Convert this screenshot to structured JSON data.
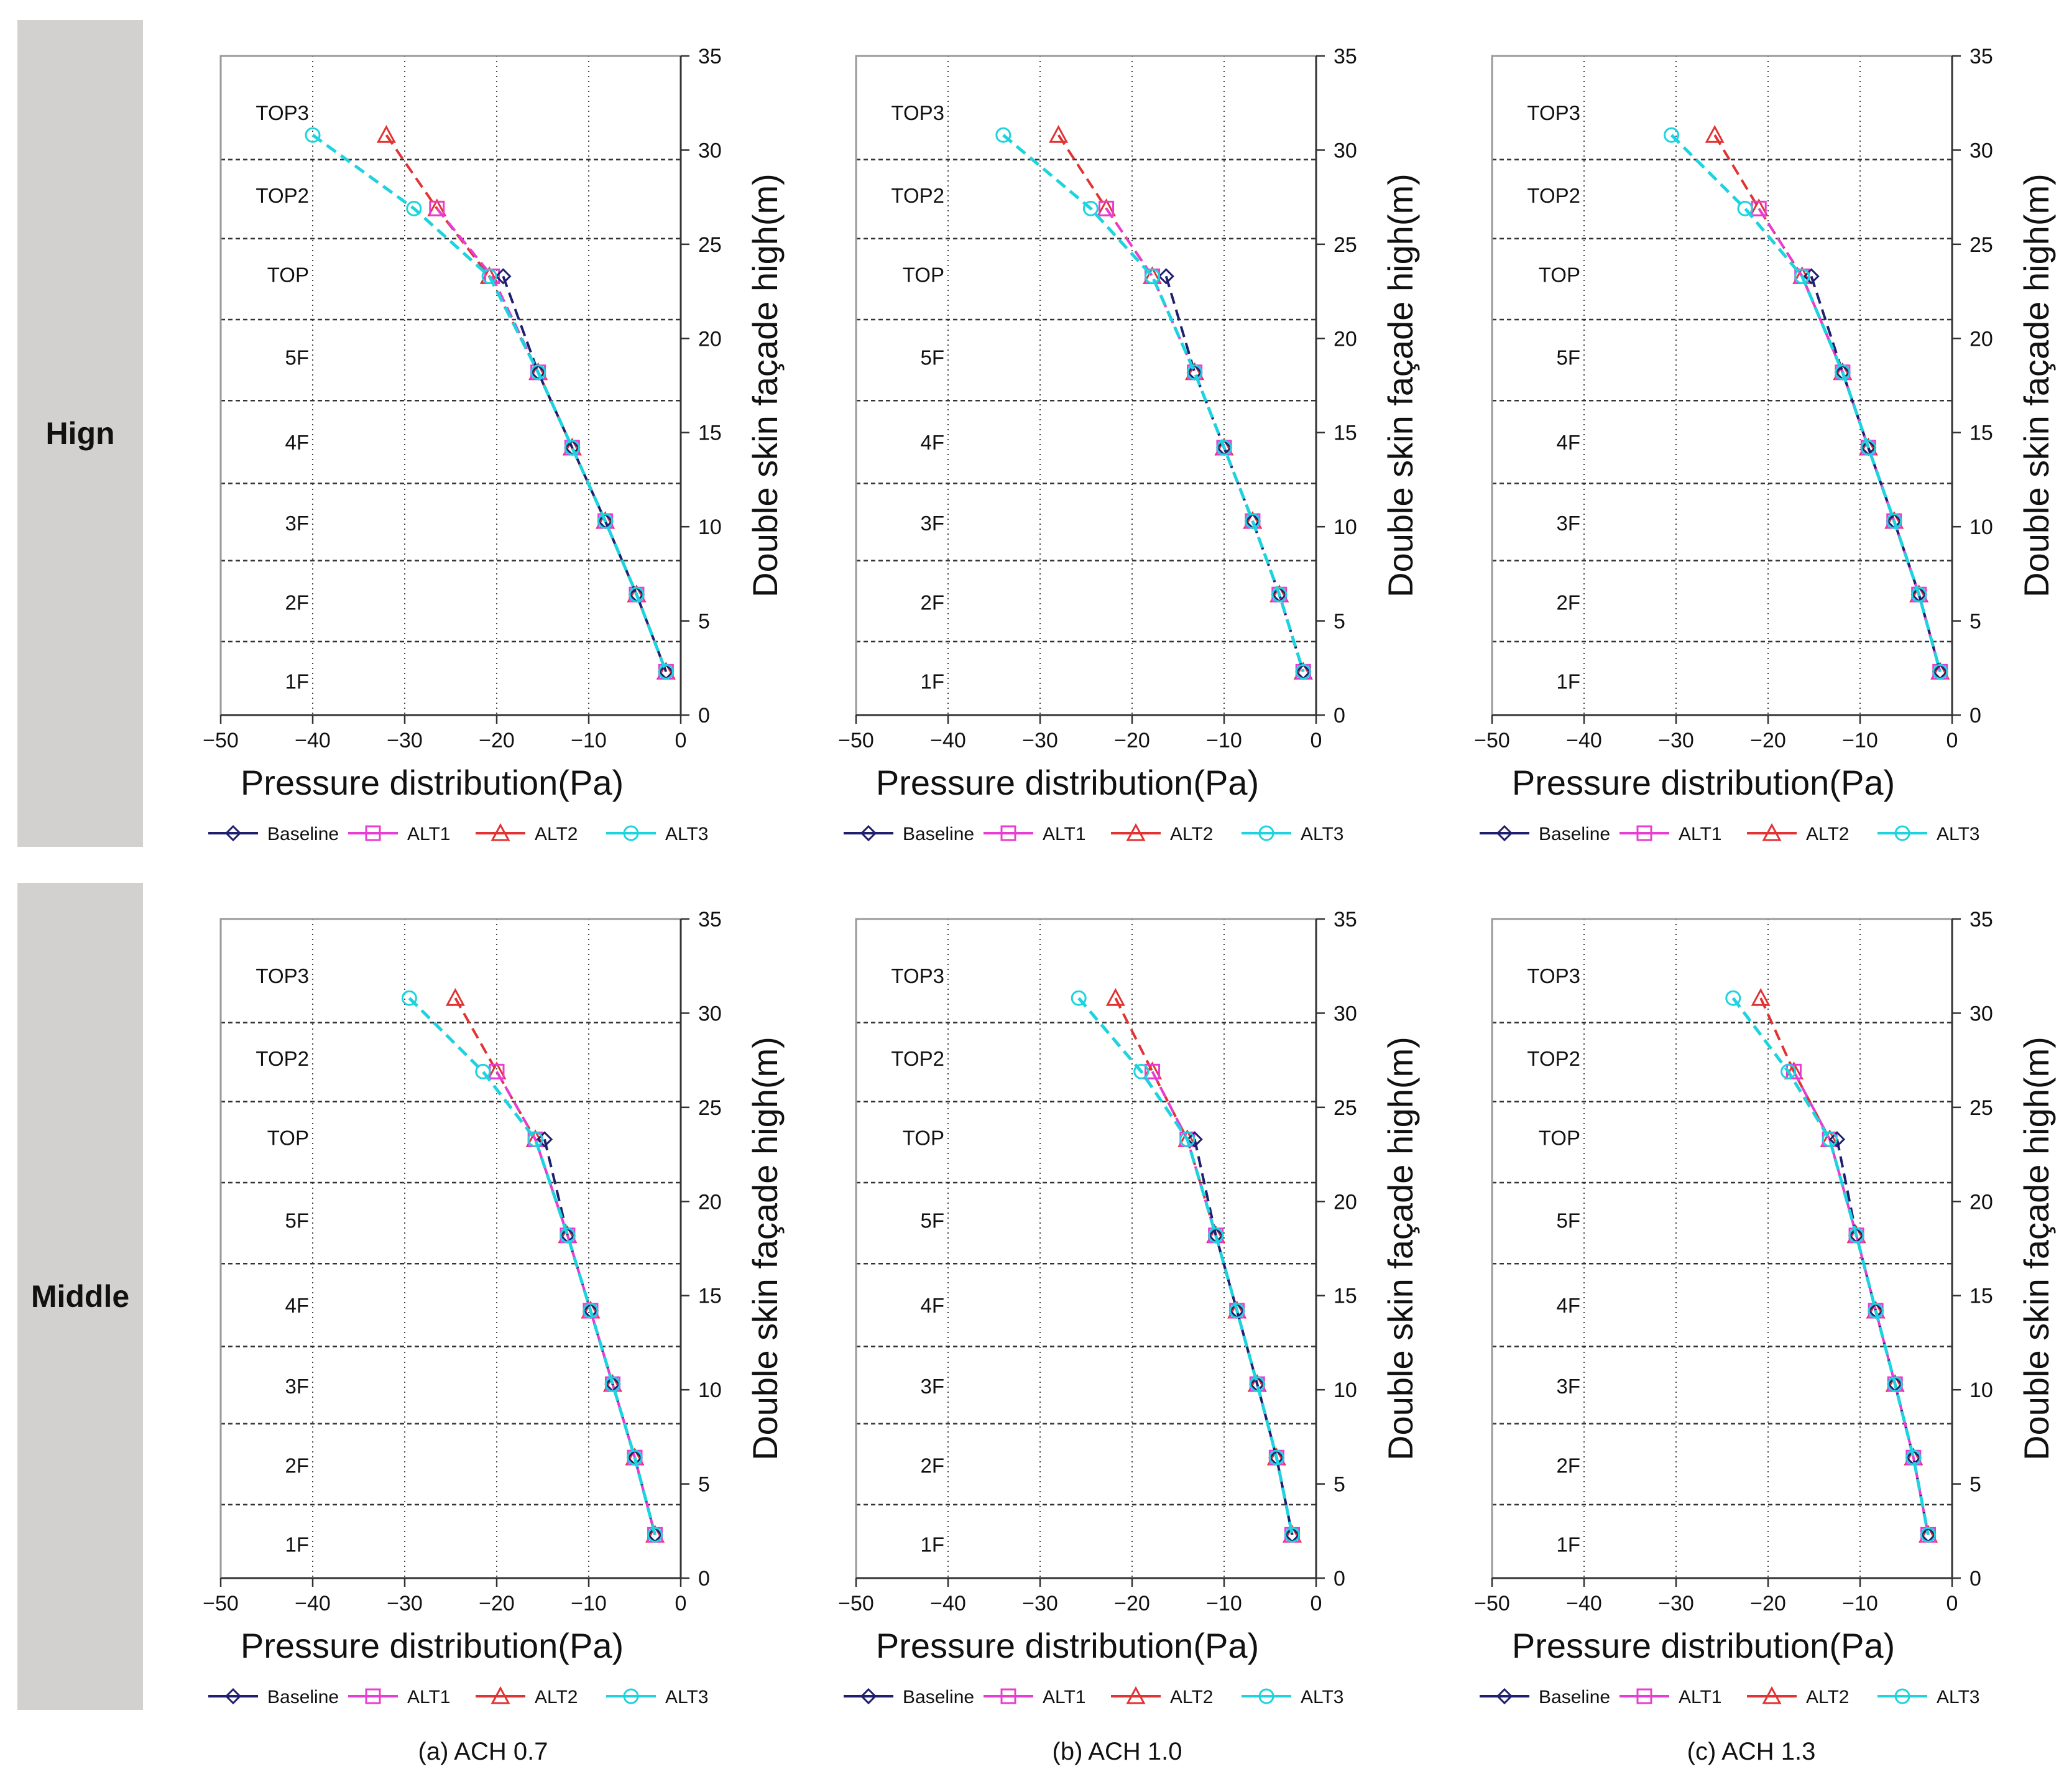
{
  "row_labels": [
    "Hign",
    "Middle"
  ],
  "column_captions": [
    "(a) ACH 0.7",
    "(b) ACH 1.0",
    "(c) ACH 1.3"
  ],
  "colors": {
    "Baseline": "#1f1f6e",
    "ALT1": "#e83cd2",
    "ALT2": "#e23232",
    "ALT3": "#1dd3de",
    "floor_lines": "#333333",
    "grid": "#444444",
    "frame": "#999999",
    "row_label_bg": "#d3d0d0"
  },
  "chart_data": [
    {
      "type": "line",
      "row": "Hign",
      "column": "(a) ACH 0.7",
      "xlabel": "Pressure distribution(Pa)",
      "ylabel": "Double skin façade high(m)",
      "xlim": [
        -50,
        0
      ],
      "ylim": [
        0,
        35
      ],
      "x_ticks": [
        -50,
        -40,
        -30,
        -20,
        -10,
        0
      ],
      "y_ticks": [
        0,
        5,
        10,
        15,
        20,
        25,
        30,
        35
      ],
      "floor_boundaries": [
        3.9,
        8.2,
        12.3,
        16.7,
        21.0,
        25.3,
        29.5
      ],
      "floor_labels": [
        {
          "label": "1F",
          "y": 1.8
        },
        {
          "label": "2F",
          "y": 6.0
        },
        {
          "label": "3F",
          "y": 10.2
        },
        {
          "label": "4F",
          "y": 14.5
        },
        {
          "label": "5F",
          "y": 19.0
        },
        {
          "label": "TOP",
          "y": 23.4
        },
        {
          "label": "TOP2",
          "y": 27.6
        },
        {
          "label": "TOP3",
          "y": 32.0
        }
      ],
      "legend": [
        "Baseline",
        "ALT1",
        "ALT2",
        "ALT3"
      ],
      "series": [
        {
          "name": "Baseline",
          "marker": "diamond",
          "x": [
            -19.3,
            -15.5,
            -11.8,
            -8.2,
            -4.8,
            -1.6
          ],
          "y": [
            23.3,
            18.2,
            14.2,
            10.3,
            6.4,
            2.3
          ]
        },
        {
          "name": "ALT1",
          "marker": "square",
          "x": [
            -26.5,
            -20.5,
            -15.5,
            -11.8,
            -8.2,
            -4.8,
            -1.6
          ],
          "y": [
            26.9,
            23.3,
            18.2,
            14.2,
            10.3,
            6.4,
            2.3
          ]
        },
        {
          "name": "ALT2",
          "marker": "triangle",
          "x": [
            -32.0,
            -26.5,
            -20.8,
            -15.5,
            -11.8,
            -8.2,
            -4.8,
            -1.6
          ],
          "y": [
            30.8,
            26.9,
            23.3,
            18.2,
            14.2,
            10.3,
            6.4,
            2.3
          ]
        },
        {
          "name": "ALT3",
          "marker": "circle",
          "x": [
            -40.0,
            -29.0,
            -20.8,
            -15.5,
            -11.8,
            -8.2,
            -4.8,
            -1.6
          ],
          "y": [
            30.8,
            26.9,
            23.3,
            18.2,
            14.2,
            10.3,
            6.4,
            2.3
          ]
        }
      ]
    },
    {
      "type": "line",
      "row": "Hign",
      "column": "(b) ACH 1.0",
      "xlabel": "Pressure distribution(Pa)",
      "ylabel": "Double skin façade high(m)",
      "xlim": [
        -50,
        0
      ],
      "ylim": [
        0,
        35
      ],
      "x_ticks": [
        -50,
        -40,
        -30,
        -20,
        -10,
        0
      ],
      "y_ticks": [
        0,
        5,
        10,
        15,
        20,
        25,
        30,
        35
      ],
      "floor_boundaries": [
        3.9,
        8.2,
        12.3,
        16.7,
        21.0,
        25.3,
        29.5
      ],
      "floor_labels": [
        {
          "label": "1F",
          "y": 1.8
        },
        {
          "label": "2F",
          "y": 6.0
        },
        {
          "label": "3F",
          "y": 10.2
        },
        {
          "label": "4F",
          "y": 14.5
        },
        {
          "label": "5F",
          "y": 19.0
        },
        {
          "label": "TOP",
          "y": 23.4
        },
        {
          "label": "TOP2",
          "y": 27.6
        },
        {
          "label": "TOP3",
          "y": 32.0
        }
      ],
      "legend": [
        "Baseline",
        "ALT1",
        "ALT2",
        "ALT3"
      ],
      "series": [
        {
          "name": "Baseline",
          "marker": "diamond",
          "x": [
            -16.3,
            -13.2,
            -10.0,
            -6.9,
            -4.0,
            -1.4
          ],
          "y": [
            23.3,
            18.2,
            14.2,
            10.3,
            6.4,
            2.3
          ]
        },
        {
          "name": "ALT1",
          "marker": "square",
          "x": [
            -22.8,
            -17.8,
            -13.2,
            -10.0,
            -6.9,
            -4.0,
            -1.4
          ],
          "y": [
            26.9,
            23.3,
            18.2,
            14.2,
            10.3,
            6.4,
            2.3
          ]
        },
        {
          "name": "ALT2",
          "marker": "triangle",
          "x": [
            -28.0,
            -22.8,
            -17.8,
            -13.2,
            -10.0,
            -6.9,
            -4.0,
            -1.4
          ],
          "y": [
            30.8,
            26.9,
            23.3,
            18.2,
            14.2,
            10.3,
            6.4,
            2.3
          ]
        },
        {
          "name": "ALT3",
          "marker": "circle",
          "x": [
            -34.0,
            -24.5,
            -17.8,
            -13.2,
            -10.0,
            -6.9,
            -4.0,
            -1.4
          ],
          "y": [
            30.8,
            26.9,
            23.3,
            18.2,
            14.2,
            10.3,
            6.4,
            2.3
          ]
        }
      ]
    },
    {
      "type": "line",
      "row": "Hign",
      "column": "(c) ACH 1.3",
      "xlabel": "Pressure distribution(Pa)",
      "ylabel": "Double skin façade high(m)",
      "xlim": [
        -50,
        0
      ],
      "ylim": [
        0,
        35
      ],
      "x_ticks": [
        -50,
        -40,
        -30,
        -20,
        -10,
        0
      ],
      "y_ticks": [
        0,
        5,
        10,
        15,
        20,
        25,
        30,
        35
      ],
      "floor_boundaries": [
        3.9,
        8.2,
        12.3,
        16.7,
        21.0,
        25.3,
        29.5
      ],
      "floor_labels": [
        {
          "label": "1F",
          "y": 1.8
        },
        {
          "label": "2F",
          "y": 6.0
        },
        {
          "label": "3F",
          "y": 10.2
        },
        {
          "label": "4F",
          "y": 14.5
        },
        {
          "label": "5F",
          "y": 19.0
        },
        {
          "label": "TOP",
          "y": 23.4
        },
        {
          "label": "TOP2",
          "y": 27.6
        },
        {
          "label": "TOP3",
          "y": 32.0
        }
      ],
      "legend": [
        "Baseline",
        "ALT1",
        "ALT2",
        "ALT3"
      ],
      "series": [
        {
          "name": "Baseline",
          "marker": "diamond",
          "x": [
            -15.3,
            -11.9,
            -9.1,
            -6.3,
            -3.6,
            -1.3
          ],
          "y": [
            23.3,
            18.2,
            14.2,
            10.3,
            6.4,
            2.3
          ]
        },
        {
          "name": "ALT1",
          "marker": "square",
          "x": [
            -21.0,
            -16.3,
            -11.9,
            -9.1,
            -6.3,
            -3.6,
            -1.3
          ],
          "y": [
            26.9,
            23.3,
            18.2,
            14.2,
            10.3,
            6.4,
            2.3
          ]
        },
        {
          "name": "ALT2",
          "marker": "triangle",
          "x": [
            -25.8,
            -21.0,
            -16.3,
            -11.9,
            -9.1,
            -6.3,
            -3.6,
            -1.3
          ],
          "y": [
            30.8,
            26.9,
            23.3,
            18.2,
            14.2,
            10.3,
            6.4,
            2.3
          ]
        },
        {
          "name": "ALT3",
          "marker": "circle",
          "x": [
            -30.5,
            -22.5,
            -16.3,
            -11.9,
            -9.1,
            -6.3,
            -3.6,
            -1.3
          ],
          "y": [
            30.8,
            26.9,
            23.3,
            18.2,
            14.2,
            10.3,
            6.4,
            2.3
          ]
        }
      ]
    },
    {
      "type": "line",
      "row": "Middle",
      "column": "(a) ACH 0.7",
      "xlabel": "Pressure distribution(Pa)",
      "ylabel": "Double skin façade high(m)",
      "xlim": [
        -50,
        0
      ],
      "ylim": [
        0,
        35
      ],
      "x_ticks": [
        -50,
        -40,
        -30,
        -20,
        -10,
        0
      ],
      "y_ticks": [
        0,
        5,
        10,
        15,
        20,
        25,
        30,
        35
      ],
      "floor_boundaries": [
        3.9,
        8.2,
        12.3,
        16.7,
        21.0,
        25.3,
        29.5
      ],
      "floor_labels": [
        {
          "label": "1F",
          "y": 1.8
        },
        {
          "label": "2F",
          "y": 6.0
        },
        {
          "label": "3F",
          "y": 10.2
        },
        {
          "label": "4F",
          "y": 14.5
        },
        {
          "label": "5F",
          "y": 19.0
        },
        {
          "label": "TOP",
          "y": 23.4
        },
        {
          "label": "TOP2",
          "y": 27.6
        },
        {
          "label": "TOP3",
          "y": 32.0
        }
      ],
      "legend": [
        "Baseline",
        "ALT1",
        "ALT2",
        "ALT3"
      ],
      "series": [
        {
          "name": "Baseline",
          "marker": "diamond",
          "x": [
            -14.8,
            -12.3,
            -9.8,
            -7.4,
            -5.0,
            -2.8
          ],
          "y": [
            23.3,
            18.2,
            14.2,
            10.3,
            6.4,
            2.3
          ]
        },
        {
          "name": "ALT1",
          "marker": "square",
          "x": [
            -20.0,
            -15.8,
            -12.3,
            -9.8,
            -7.4,
            -5.0,
            -2.8
          ],
          "y": [
            26.9,
            23.3,
            18.2,
            14.2,
            10.3,
            6.4,
            2.3
          ]
        },
        {
          "name": "ALT2",
          "marker": "triangle",
          "x": [
            -24.5,
            -20.0,
            -15.8,
            -12.3,
            -9.8,
            -7.4,
            -5.0,
            -2.8
          ],
          "y": [
            30.8,
            26.9,
            23.3,
            18.2,
            14.2,
            10.3,
            6.4,
            2.3
          ]
        },
        {
          "name": "ALT3",
          "marker": "circle",
          "x": [
            -29.5,
            -21.5,
            -15.8,
            -12.3,
            -9.8,
            -7.4,
            -5.0,
            -2.8
          ],
          "y": [
            30.8,
            26.9,
            23.3,
            18.2,
            14.2,
            10.3,
            6.4,
            2.3
          ]
        }
      ]
    },
    {
      "type": "line",
      "row": "Middle",
      "column": "(b) ACH 1.0",
      "xlabel": "Pressure distribution(Pa)",
      "ylabel": "Double skin façade high(m)",
      "xlim": [
        -50,
        0
      ],
      "ylim": [
        0,
        35
      ],
      "x_ticks": [
        -50,
        -40,
        -30,
        -20,
        -10,
        0
      ],
      "y_ticks": [
        0,
        5,
        10,
        15,
        20,
        25,
        30,
        35
      ],
      "floor_boundaries": [
        3.9,
        8.2,
        12.3,
        16.7,
        21.0,
        25.3,
        29.5
      ],
      "floor_labels": [
        {
          "label": "1F",
          "y": 1.8
        },
        {
          "label": "2F",
          "y": 6.0
        },
        {
          "label": "3F",
          "y": 10.2
        },
        {
          "label": "4F",
          "y": 14.5
        },
        {
          "label": "5F",
          "y": 19.0
        },
        {
          "label": "TOP",
          "y": 23.4
        },
        {
          "label": "TOP2",
          "y": 27.6
        },
        {
          "label": "TOP3",
          "y": 32.0
        }
      ],
      "legend": [
        "Baseline",
        "ALT1",
        "ALT2",
        "ALT3"
      ],
      "series": [
        {
          "name": "Baseline",
          "marker": "diamond",
          "x": [
            -13.2,
            -10.9,
            -8.6,
            -6.4,
            -4.3,
            -2.6
          ],
          "y": [
            23.3,
            18.2,
            14.2,
            10.3,
            6.4,
            2.3
          ]
        },
        {
          "name": "ALT1",
          "marker": "square",
          "x": [
            -17.8,
            -14.0,
            -10.9,
            -8.6,
            -6.4,
            -4.3,
            -2.6
          ],
          "y": [
            26.9,
            23.3,
            18.2,
            14.2,
            10.3,
            6.4,
            2.3
          ]
        },
        {
          "name": "ALT2",
          "marker": "triangle",
          "x": [
            -21.8,
            -17.8,
            -14.0,
            -10.9,
            -8.6,
            -6.4,
            -4.3,
            -2.6
          ],
          "y": [
            30.8,
            26.9,
            23.3,
            18.2,
            14.2,
            10.3,
            6.4,
            2.3
          ]
        },
        {
          "name": "ALT3",
          "marker": "circle",
          "x": [
            -25.8,
            -19.0,
            -14.0,
            -10.9,
            -8.6,
            -6.4,
            -4.3,
            -2.6
          ],
          "y": [
            30.8,
            26.9,
            23.3,
            18.2,
            14.2,
            10.3,
            6.4,
            2.3
          ]
        }
      ]
    },
    {
      "type": "line",
      "row": "Middle",
      "column": "(c) ACH 1.3",
      "xlabel": "Pressure distribution(Pa)",
      "ylabel": "Double skin façade high(m)",
      "xlim": [
        -50,
        0
      ],
      "ylim": [
        0,
        35
      ],
      "x_ticks": [
        -50,
        -40,
        -30,
        -20,
        -10,
        0
      ],
      "y_ticks": [
        0,
        5,
        10,
        15,
        20,
        25,
        30,
        35
      ],
      "floor_boundaries": [
        3.9,
        8.2,
        12.3,
        16.7,
        21.0,
        25.3,
        29.5
      ],
      "floor_labels": [
        {
          "label": "1F",
          "y": 1.8
        },
        {
          "label": "2F",
          "y": 6.0
        },
        {
          "label": "3F",
          "y": 10.2
        },
        {
          "label": "4F",
          "y": 14.5
        },
        {
          "label": "5F",
          "y": 19.0
        },
        {
          "label": "TOP",
          "y": 23.4
        },
        {
          "label": "TOP2",
          "y": 27.6
        },
        {
          "label": "TOP3",
          "y": 32.0
        }
      ],
      "legend": [
        "Baseline",
        "ALT1",
        "ALT2",
        "ALT3"
      ],
      "series": [
        {
          "name": "Baseline",
          "marker": "diamond",
          "x": [
            -12.5,
            -10.4,
            -8.3,
            -6.2,
            -4.2,
            -2.6
          ],
          "y": [
            23.3,
            18.2,
            14.2,
            10.3,
            6.4,
            2.3
          ]
        },
        {
          "name": "ALT1",
          "marker": "square",
          "x": [
            -17.2,
            -13.3,
            -10.4,
            -8.3,
            -6.2,
            -4.2,
            -2.6
          ],
          "y": [
            26.9,
            23.3,
            18.2,
            14.2,
            10.3,
            6.4,
            2.3
          ]
        },
        {
          "name": "ALT2",
          "marker": "triangle",
          "x": [
            -20.8,
            -17.2,
            -13.3,
            -10.4,
            -8.3,
            -6.2,
            -4.2,
            -2.6
          ],
          "y": [
            30.8,
            26.9,
            23.3,
            18.2,
            14.2,
            10.3,
            6.4,
            2.3
          ]
        },
        {
          "name": "ALT3",
          "marker": "circle",
          "x": [
            -23.8,
            -17.8,
            -13.3,
            -10.4,
            -8.3,
            -6.2,
            -4.2,
            -2.6
          ],
          "y": [
            30.8,
            26.9,
            23.3,
            18.2,
            14.2,
            10.3,
            6.4,
            2.3
          ]
        }
      ]
    }
  ]
}
